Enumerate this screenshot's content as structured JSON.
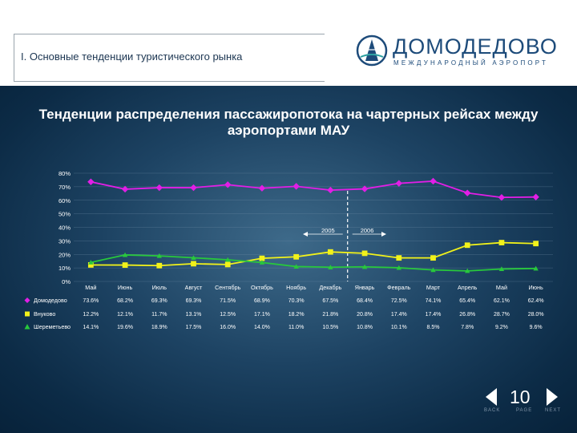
{
  "header": {
    "title": "I. Основные тенденции туристического рынка",
    "logo_name": "ДОМОДЕДОВО",
    "logo_sub": "МЕЖДУНАРОДНЫЙ АЭРОПОРТ"
  },
  "colors": {
    "domodedovo": "#e21ee6",
    "vnukovo": "#f2f21a",
    "sheremetyevo": "#28c83c"
  },
  "chart_data": {
    "type": "line",
    "title": "Тенденции распределения пассажиропотока на чартерных рейсах между аэропортами МАУ",
    "ylim": [
      0,
      80
    ],
    "y_tick_labels": [
      "0%",
      "10%",
      "20%",
      "30%",
      "40%",
      "50%",
      "60%",
      "70%",
      "80%"
    ],
    "categories": [
      "Май",
      "Июнь",
      "Июль",
      "Август",
      "Сентябрь",
      "Октябрь",
      "Ноябрь",
      "Декабрь",
      "Январь",
      "Февраль",
      "Март",
      "Апрель",
      "Май",
      "Июнь"
    ],
    "year_labels": [
      "2005",
      "2006"
    ],
    "grid": true,
    "series": [
      {
        "name": "Домодедово",
        "values": [
          73.6,
          68.2,
          69.3,
          69.3,
          71.5,
          68.9,
          70.3,
          67.5,
          68.4,
          72.5,
          74.1,
          65.4,
          62.1,
          62.4
        ],
        "labels": [
          "73.6%",
          "68.2%",
          "69.3%",
          "69.3%",
          "71.5%",
          "68.9%",
          "70.3%",
          "67.5%",
          "68.4%",
          "72.5%",
          "74.1%",
          "65.4%",
          "62.1%",
          "62.4%"
        ]
      },
      {
        "name": "Внуково",
        "values": [
          12.2,
          12.1,
          11.7,
          13.1,
          12.5,
          17.1,
          18.2,
          21.8,
          20.8,
          17.4,
          17.4,
          26.8,
          28.7,
          28.0
        ],
        "labels": [
          "12.2%",
          "12.1%",
          "11.7%",
          "13.1%",
          "12.5%",
          "17.1%",
          "18.2%",
          "21.8%",
          "20.8%",
          "17.4%",
          "17.4%",
          "26.8%",
          "28.7%",
          "28.0%"
        ]
      },
      {
        "name": "Шереметьево",
        "values": [
          14.1,
          19.6,
          18.9,
          17.5,
          16.0,
          14.0,
          11.0,
          10.5,
          10.8,
          10.1,
          8.5,
          7.8,
          9.2,
          9.6
        ],
        "labels": [
          "14.1%",
          "19.6%",
          "18.9%",
          "17.5%",
          "16.0%",
          "14.0%",
          "11.0%",
          "10.5%",
          "10.8%",
          "10.1%",
          "8.5%",
          "7.8%",
          "9.2%",
          "9.6%"
        ]
      }
    ]
  },
  "footer": {
    "page_number": "10",
    "nav_back": "BACK",
    "nav_page": "PAGE",
    "nav_next": "NEXT"
  }
}
